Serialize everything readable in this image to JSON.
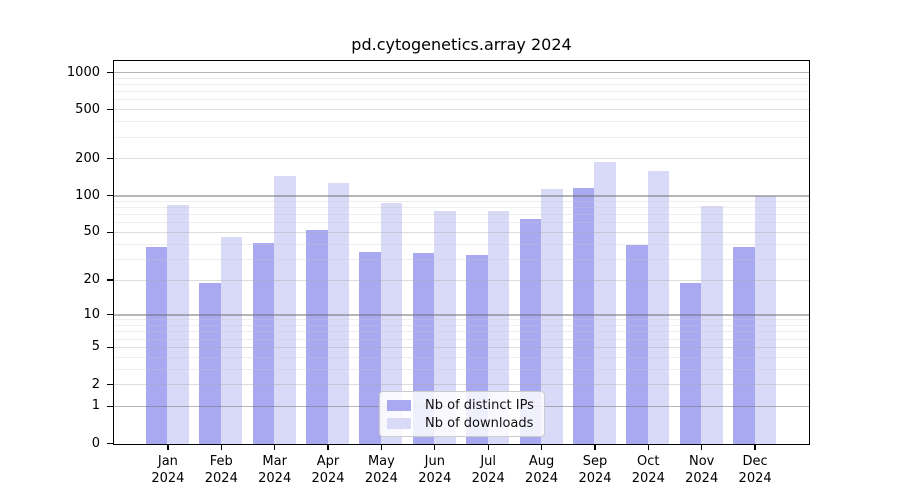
{
  "chart_data": {
    "type": "bar",
    "title": "pd.cytogenetics.array 2024",
    "categories": [
      "Jan",
      "Feb",
      "Mar",
      "Apr",
      "May",
      "Jun",
      "Jul",
      "Aug",
      "Sep",
      "Oct",
      "Nov",
      "Dec"
    ],
    "category_year": "2024",
    "series": [
      {
        "name": "Nb of distinct IPs",
        "color": "#a9a9f2",
        "values": [
          38,
          19,
          41,
          53,
          35,
          34,
          33,
          65,
          117,
          40,
          19,
          38
        ]
      },
      {
        "name": "Nb of downloads",
        "color": "#d9d9f8",
        "values": [
          84,
          46,
          147,
          129,
          88,
          75,
          76,
          115,
          190,
          160,
          83,
          100
        ]
      }
    ],
    "xlabel": "",
    "ylabel": "",
    "y_axis": {
      "scale": "log1p",
      "tick_values": [
        0,
        1,
        2,
        5,
        10,
        20,
        50,
        100,
        200,
        500,
        1000
      ],
      "minor_tick_values": [
        3,
        4,
        6,
        7,
        8,
        9,
        30,
        40,
        60,
        70,
        80,
        90,
        300,
        400,
        600,
        700,
        800,
        900
      ],
      "ylim": [
        0,
        1200
      ]
    },
    "grid": true,
    "legend_position": "bottom-center"
  },
  "colors": {
    "bar_dark": "#a9a9f2",
    "bar_light": "#d9d9f8",
    "axis": "#000000",
    "grid_major": "#b4b4b4",
    "grid_minor": "#ededed",
    "background": "#ffffff"
  }
}
